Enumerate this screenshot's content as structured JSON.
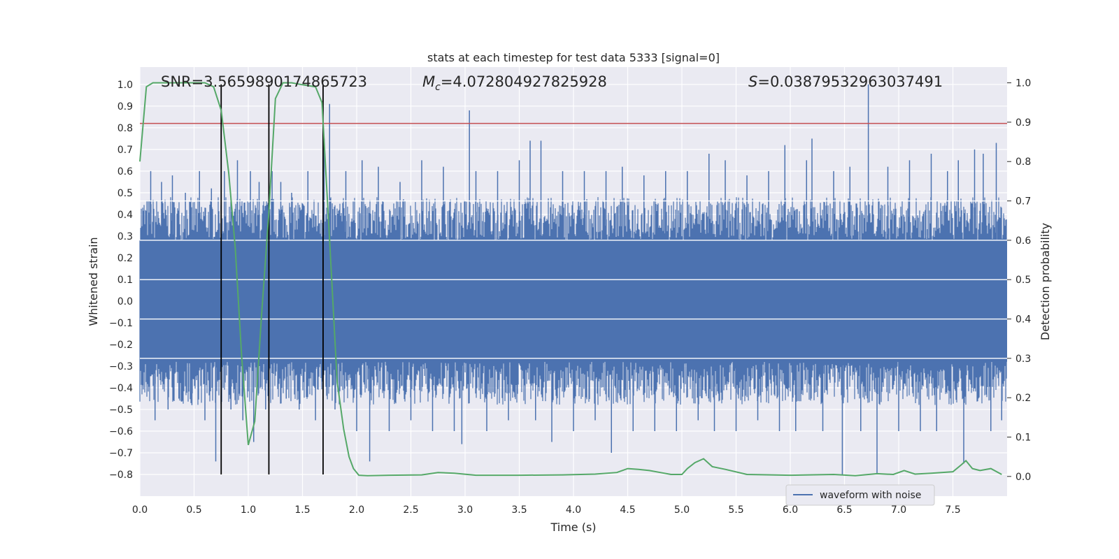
{
  "chart_data": {
    "type": "line",
    "title": "stats at each timestep for test data 5333 [signal=0]",
    "xlabel": "Time (s)",
    "ylabel": "Whitened strain",
    "ylabel_right": "Detection probability",
    "xlim": [
      0.0,
      8.0
    ],
    "ylim": [
      -0.9,
      1.08
    ],
    "ylim_right": [
      -0.05,
      1.04
    ],
    "x_ticks": [
      0.0,
      0.5,
      1.0,
      1.5,
      2.0,
      2.5,
      3.0,
      3.5,
      4.0,
      4.5,
      5.0,
      5.5,
      6.0,
      6.5,
      7.0,
      7.5
    ],
    "x_tick_labels": [
      "0.0",
      "0.5",
      "1.0",
      "1.5",
      "2.0",
      "2.5",
      "3.0",
      "3.5",
      "4.0",
      "4.5",
      "5.0",
      "5.5",
      "6.0",
      "6.5",
      "7.0",
      "7.5"
    ],
    "y_ticks": [
      -0.8,
      -0.7,
      -0.6,
      -0.5,
      -0.4,
      -0.3,
      -0.2,
      -0.1,
      0.0,
      0.1,
      0.2,
      0.3,
      0.4,
      0.5,
      0.6,
      0.7,
      0.8,
      0.9,
      1.0
    ],
    "y_tick_labels": [
      "−0.8",
      "−0.7",
      "−0.6",
      "−0.5",
      "−0.4",
      "−0.3",
      "−0.2",
      "−0.1",
      "0.0",
      "0.1",
      "0.2",
      "0.3",
      "0.4",
      "0.5",
      "0.6",
      "0.7",
      "0.8",
      "0.9",
      "1.0"
    ],
    "y_right_ticks": [
      0.0,
      0.1,
      0.2,
      0.3,
      0.4,
      0.5,
      0.6,
      0.7,
      0.8,
      0.9,
      1.0
    ],
    "y_right_tick_labels": [
      "0.0",
      "0.1",
      "0.2",
      "0.3",
      "0.4",
      "0.5",
      "0.6",
      "0.7",
      "0.8",
      "0.9",
      "1.0"
    ],
    "grid": true,
    "legend": {
      "placement": "lower-right",
      "entries": [
        "waveform with noise"
      ]
    },
    "annotations": {
      "snr": "SNR=3.5659890174865723",
      "mc_symbol": "M",
      "mc_sub": "c",
      "mc_value": "=4.072804927825928",
      "s_symbol": "S",
      "s_value": "=0.03879532963037491"
    },
    "threshold_line": {
      "y": 0.82,
      "color": "#c44e52"
    },
    "vertical_lines": [
      0.75,
      1.19,
      1.69
    ],
    "waveform": {
      "name": "waveform with noise",
      "color": "#4c72b0",
      "envelope_abs": 0.28,
      "spikes": [
        [
          0.05,
          0.3
        ],
        [
          0.1,
          0.6
        ],
        [
          0.14,
          -0.55
        ],
        [
          0.2,
          0.55
        ],
        [
          0.26,
          -0.5
        ],
        [
          0.3,
          0.58
        ],
        [
          0.36,
          -0.45
        ],
        [
          0.42,
          0.5
        ],
        [
          0.48,
          -0.48
        ],
        [
          0.55,
          0.6
        ],
        [
          0.6,
          -0.55
        ],
        [
          0.66,
          0.52
        ],
        [
          0.7,
          -0.74
        ],
        [
          0.78,
          0.6
        ],
        [
          0.84,
          -0.5
        ],
        [
          0.9,
          0.65
        ],
        [
          0.95,
          -0.55
        ],
        [
          1.02,
          0.6
        ],
        [
          1.05,
          -0.65
        ],
        [
          1.1,
          0.55
        ],
        [
          1.16,
          -0.5
        ],
        [
          1.22,
          0.6
        ],
        [
          1.3,
          0.55
        ],
        [
          1.35,
          -0.45
        ],
        [
          1.4,
          0.5
        ],
        [
          1.47,
          -0.5
        ],
        [
          1.55,
          0.6
        ],
        [
          1.62,
          -0.55
        ],
        [
          1.7,
          0.75
        ],
        [
          1.75,
          0.91
        ],
        [
          1.8,
          -0.5
        ],
        [
          1.9,
          0.6
        ],
        [
          2.0,
          -0.6
        ],
        [
          2.05,
          0.65
        ],
        [
          2.12,
          -0.74
        ],
        [
          2.2,
          0.62
        ],
        [
          2.3,
          -0.6
        ],
        [
          2.4,
          0.55
        ],
        [
          2.5,
          -0.55
        ],
        [
          2.6,
          0.65
        ],
        [
          2.7,
          -0.6
        ],
        [
          2.8,
          0.62
        ],
        [
          2.9,
          -0.6
        ],
        [
          2.97,
          -0.66
        ],
        [
          3.04,
          0.88
        ],
        [
          3.1,
          0.6
        ],
        [
          3.2,
          -0.6
        ],
        [
          3.3,
          0.6
        ],
        [
          3.4,
          -0.55
        ],
        [
          3.5,
          0.65
        ],
        [
          3.6,
          0.74
        ],
        [
          3.65,
          -0.55
        ],
        [
          3.7,
          0.74
        ],
        [
          3.8,
          -0.65
        ],
        [
          3.9,
          0.6
        ],
        [
          4.0,
          -0.6
        ],
        [
          4.1,
          0.6
        ],
        [
          4.2,
          -0.55
        ],
        [
          4.3,
          0.6
        ],
        [
          4.35,
          -0.7
        ],
        [
          4.45,
          0.62
        ],
        [
          4.55,
          -0.6
        ],
        [
          4.65,
          0.58
        ],
        [
          4.75,
          -0.6
        ],
        [
          4.85,
          0.6
        ],
        [
          4.95,
          -0.6
        ],
        [
          5.05,
          0.6
        ],
        [
          5.15,
          -0.55
        ],
        [
          5.25,
          0.68
        ],
        [
          5.3,
          -0.6
        ],
        [
          5.4,
          0.65
        ],
        [
          5.5,
          -0.6
        ],
        [
          5.6,
          0.58
        ],
        [
          5.7,
          -0.55
        ],
        [
          5.8,
          0.6
        ],
        [
          5.9,
          -0.6
        ],
        [
          5.95,
          0.72
        ],
        [
          6.05,
          -0.6
        ],
        [
          6.15,
          0.65
        ],
        [
          6.2,
          0.75
        ],
        [
          6.3,
          -0.6
        ],
        [
          6.4,
          0.6
        ],
        [
          6.48,
          -0.8
        ],
        [
          6.55,
          0.62
        ],
        [
          6.65,
          -0.6
        ],
        [
          6.72,
          1.0
        ],
        [
          6.8,
          -0.8
        ],
        [
          6.9,
          0.62
        ],
        [
          7.0,
          -0.6
        ],
        [
          7.1,
          0.65
        ],
        [
          7.2,
          -0.6
        ],
        [
          7.3,
          0.68
        ],
        [
          7.35,
          -0.6
        ],
        [
          7.45,
          0.6
        ],
        [
          7.55,
          0.65
        ],
        [
          7.6,
          -0.75
        ],
        [
          7.7,
          0.7
        ],
        [
          7.78,
          0.68
        ],
        [
          7.85,
          -0.6
        ],
        [
          7.9,
          0.73
        ],
        [
          7.95,
          -0.55
        ]
      ]
    },
    "detection_probability": {
      "color": "#55a868",
      "axis": "right",
      "x": [
        0.0,
        0.06,
        0.12,
        0.2,
        0.3,
        0.4,
        0.5,
        0.6,
        0.68,
        0.75,
        0.82,
        0.88,
        0.94,
        1.0,
        1.06,
        1.12,
        1.19,
        1.25,
        1.32,
        1.4,
        1.5,
        1.62,
        1.68,
        1.75,
        1.82,
        1.88,
        1.93,
        1.97,
        2.02,
        2.1,
        2.3,
        2.6,
        2.75,
        2.9,
        3.1,
        3.5,
        3.9,
        4.2,
        4.4,
        4.5,
        4.6,
        4.7,
        4.8,
        4.9,
        5.0,
        5.05,
        5.12,
        5.2,
        5.28,
        5.4,
        5.6,
        6.0,
        6.4,
        6.6,
        6.8,
        6.95,
        7.05,
        7.15,
        7.3,
        7.5,
        7.58,
        7.62,
        7.68,
        7.75,
        7.85,
        7.95
      ],
      "y": [
        0.8,
        0.99,
        1.0,
        1.0,
        1.0,
        1.0,
        1.0,
        1.0,
        0.99,
        0.93,
        0.77,
        0.58,
        0.3,
        0.08,
        0.14,
        0.4,
        0.67,
        0.96,
        1.0,
        1.0,
        0.995,
        0.99,
        0.95,
        0.6,
        0.24,
        0.12,
        0.05,
        0.02,
        0.003,
        0.002,
        0.003,
        0.004,
        0.01,
        0.008,
        0.003,
        0.003,
        0.004,
        0.006,
        0.01,
        0.02,
        0.018,
        0.015,
        0.01,
        0.005,
        0.005,
        0.02,
        0.035,
        0.045,
        0.025,
        0.018,
        0.005,
        0.003,
        0.005,
        0.002,
        0.007,
        0.005,
        0.015,
        0.006,
        0.008,
        0.012,
        0.03,
        0.04,
        0.02,
        0.015,
        0.02,
        0.005
      ]
    }
  }
}
